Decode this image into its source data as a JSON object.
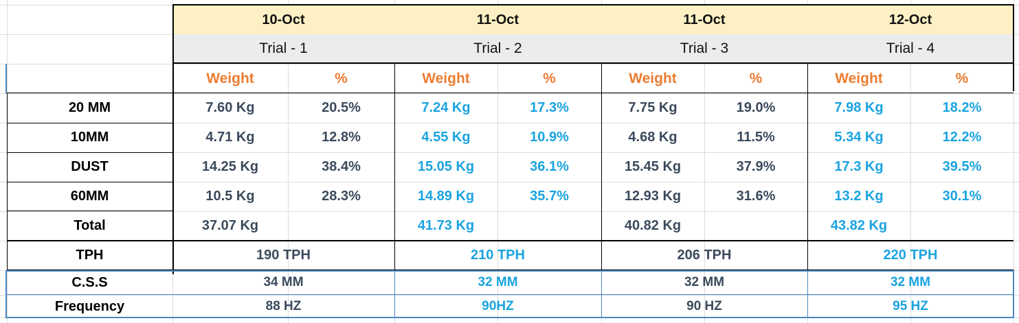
{
  "trials": [
    {
      "date": "10-Oct",
      "trial": "Trial - 1",
      "weight_header": "Weight",
      "pct_header": "%",
      "rows": [
        [
          "7.60 Kg",
          "20.5%"
        ],
        [
          "4.71 Kg",
          "12.8%"
        ],
        [
          "14.25 Kg",
          "38.4%"
        ],
        [
          "10.5 Kg",
          "28.3%"
        ]
      ],
      "total": "37.07 Kg",
      "tph": "190 TPH",
      "css": "34 MM",
      "frequency": "88 HZ"
    },
    {
      "date": "11-Oct",
      "trial": "Trial - 2",
      "weight_header": "Weight",
      "pct_header": "%",
      "rows": [
        [
          "7.24 Kg",
          "17.3%"
        ],
        [
          "4.55 Kg",
          "10.9%"
        ],
        [
          "15.05 Kg",
          "36.1%"
        ],
        [
          "14.89 Kg",
          "35.7%"
        ]
      ],
      "total": "41.73 Kg",
      "tph": "210 TPH",
      "css": "32 MM",
      "frequency": "90HZ"
    },
    {
      "date": "11-Oct",
      "trial": "Trial - 3",
      "weight_header": "Weight",
      "pct_header": "%",
      "rows": [
        [
          "7.75 Kg",
          "19.0%"
        ],
        [
          "4.68 Kg",
          "11.5%"
        ],
        [
          "15.45 Kg",
          "37.9%"
        ],
        [
          "12.93 Kg",
          "31.6%"
        ]
      ],
      "total": "40.82 Kg",
      "tph": "206 TPH",
      "css": "32 MM",
      "frequency": "90 HZ"
    },
    {
      "date": "12-Oct",
      "trial": "Trial - 4",
      "weight_header": "Weight",
      "pct_header": "%",
      "rows": [
        [
          "7.98 Kg",
          "18.2%"
        ],
        [
          "5.34 Kg",
          "12.2%"
        ],
        [
          "17.3 Kg",
          "39.5%"
        ],
        [
          "13.2 Kg",
          "30.1%"
        ]
      ],
      "total": "43.82 Kg",
      "tph": "220 TPH",
      "css": "32 MM",
      "frequency": "95 HZ"
    }
  ],
  "row_labels": [
    "20 MM",
    "10MM",
    "DUST",
    "60MM",
    "Total",
    "TPH",
    "C.S.S",
    "Frequency"
  ],
  "colors": {
    "header_orange": "#ed7d31",
    "value_blue": "#1aa3e0",
    "value_dark": "#3b4a5c",
    "date_fill": "#fdf0c4",
    "trial_fill": "#ececec"
  }
}
